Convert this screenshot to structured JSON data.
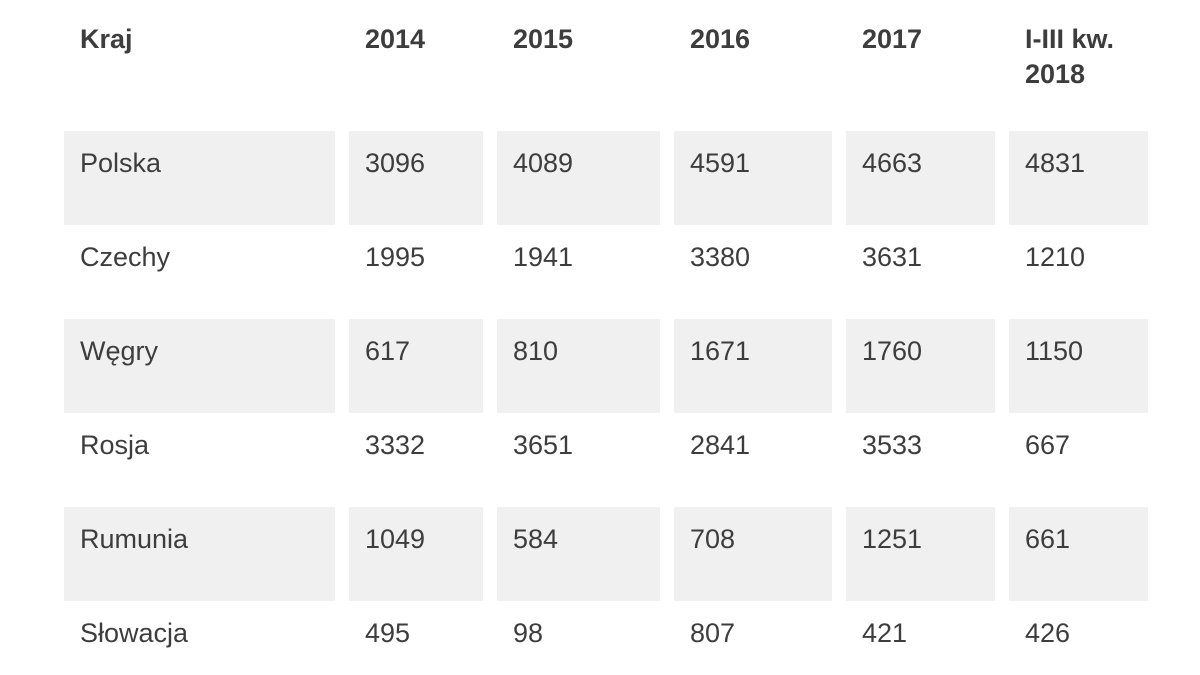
{
  "chart_data": {
    "type": "table",
    "columns": [
      "Kraj",
      "2014",
      "2015",
      "2016",
      "2017",
      "I-III kw. 2018"
    ],
    "rows": [
      {
        "country": "Polska",
        "values": [
          "3096",
          "4089",
          "4591",
          "4663",
          "4831"
        ]
      },
      {
        "country": "Czechy",
        "values": [
          "1995",
          "1941",
          "3380",
          "3631",
          "1210"
        ]
      },
      {
        "country": "Węgry",
        "values": [
          "617",
          "810",
          "1671",
          "1760",
          "1150"
        ]
      },
      {
        "country": "Rosja",
        "values": [
          "3332",
          "3651",
          "2841",
          "3533",
          "667"
        ]
      },
      {
        "country": "Rumunia",
        "values": [
          "1049",
          "584",
          "708",
          "1251",
          "661"
        ]
      },
      {
        "country": "Słowacja",
        "values": [
          "495",
          "98",
          "807",
          "421",
          "426"
        ]
      }
    ]
  },
  "colors": {
    "row_stripe": "#f0f0f0",
    "text": "#3d3d3d",
    "background": "#ffffff"
  }
}
